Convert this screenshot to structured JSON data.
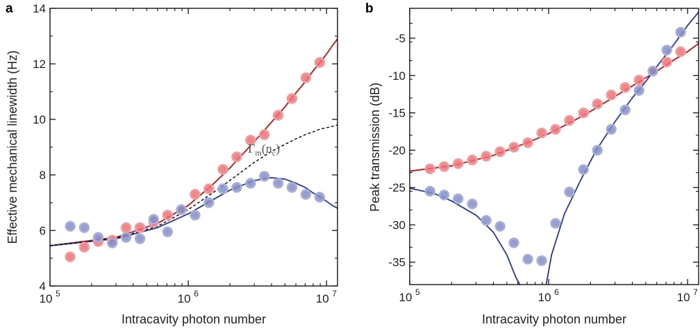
{
  "chart_data": [
    {
      "type": "scatter",
      "panel": "a",
      "xlabel": "Intracavity photon number",
      "ylabel": "Effective mechanical linewidth (Hz)",
      "xscale": "log",
      "xlim": [
        100000,
        12000000
      ],
      "ylim": [
        4,
        14
      ],
      "yticks": [
        4,
        6,
        8,
        10,
        12,
        14
      ],
      "xticks": [
        {
          "value": 100000,
          "base": "10",
          "exp": "5"
        },
        {
          "value": 1000000,
          "base": "10",
          "exp": "6"
        },
        {
          "value": 10000000,
          "base": "10",
          "exp": "7"
        }
      ],
      "annotation": {
        "main": "Γ",
        "sub1": "m",
        "mid": "(n",
        "sub2": "c",
        "end": ")",
        "x": 2700000,
        "y": 8.8
      },
      "series": [
        {
          "color": "#e0242a",
          "x": [
            140000,
            177000,
            223000,
            282000,
            355000,
            447000,
            562000,
            708000,
            891000,
            1120000,
            1410000,
            1780000,
            2240000,
            2820000,
            3550000,
            4470000,
            5620000,
            7080000,
            8910000
          ],
          "y": [
            5.05,
            5.4,
            5.6,
            5.65,
            6.1,
            6.1,
            6.3,
            6.55,
            6.75,
            7.3,
            7.5,
            8.2,
            8.65,
            9.25,
            9.45,
            10.15,
            10.75,
            11.5,
            12.05
          ]
        },
        {
          "color": "#3f4fa6",
          "x": [
            140000,
            177000,
            223000,
            282000,
            355000,
            447000,
            562000,
            708000,
            891000,
            1120000,
            1410000,
            1780000,
            2240000,
            2820000,
            3550000,
            4470000,
            5620000,
            7080000,
            8910000
          ],
          "y": [
            6.15,
            6.1,
            5.75,
            5.55,
            5.75,
            5.7,
            6.4,
            5.95,
            6.75,
            6.55,
            7.0,
            7.5,
            7.55,
            7.7,
            7.95,
            7.7,
            7.55,
            7.3,
            7.2
          ]
        }
      ],
      "fits": [
        {
          "color": "#c0181e",
          "style": "solid",
          "x": [
            100000,
            300000,
            600000,
            1000000,
            1500000,
            2000000,
            3000000,
            4000000,
            5000000,
            6000000,
            7000000,
            8000000,
            9000000,
            10000000,
            11000000,
            12000000
          ],
          "y": [
            5.45,
            5.75,
            6.25,
            6.9,
            7.65,
            8.25,
            9.2,
            9.9,
            10.45,
            10.95,
            11.35,
            11.75,
            12.05,
            12.35,
            12.65,
            12.9
          ]
        },
        {
          "color": "#2f3f9e",
          "style": "solid",
          "x": [
            100000,
            300000,
            600000,
            1000000,
            1500000,
            2000000,
            3000000,
            4000000,
            5000000,
            6000000,
            7000000,
            8000000,
            9000000,
            10000000,
            11000000,
            12000000
          ],
          "y": [
            5.45,
            5.7,
            6.1,
            6.6,
            7.1,
            7.45,
            7.8,
            7.9,
            7.85,
            7.7,
            7.55,
            7.35,
            7.2,
            7.05,
            6.9,
            6.8
          ]
        },
        {
          "color": "#000000",
          "style": "dashed",
          "x": [
            100000,
            300000,
            600000,
            1000000,
            1500000,
            2000000,
            3000000,
            4000000,
            5000000,
            6000000,
            7000000,
            8000000,
            9000000,
            10000000,
            11000000,
            12000000
          ],
          "y": [
            5.45,
            5.72,
            6.15,
            6.75,
            7.35,
            7.8,
            8.45,
            8.85,
            9.1,
            9.3,
            9.45,
            9.55,
            9.65,
            9.7,
            9.75,
            9.8
          ]
        }
      ]
    },
    {
      "type": "scatter",
      "panel": "b",
      "xlabel": "Intracavity photon number",
      "ylabel": "Peak transmission (dB)",
      "xscale": "log",
      "xlim": [
        100000,
        12000000
      ],
      "ylim": [
        -38,
        -1
      ],
      "yticks": [
        -35,
        -30,
        -25,
        -20,
        -15,
        -10,
        -5
      ],
      "xticks": [
        {
          "value": 100000,
          "base": "10",
          "exp": "5"
        },
        {
          "value": 1000000,
          "base": "10",
          "exp": "6"
        },
        {
          "value": 10000000,
          "base": "10",
          "exp": "7"
        }
      ],
      "series": [
        {
          "color": "#e0242a",
          "x": [
            140000,
            177000,
            223000,
            282000,
            355000,
            447000,
            562000,
            708000,
            891000,
            1120000,
            1410000,
            1780000,
            2240000,
            2820000,
            3550000,
            4470000,
            5620000,
            7080000,
            8910000
          ],
          "y": [
            -22.5,
            -22.2,
            -21.8,
            -21.3,
            -20.8,
            -20.2,
            -19.6,
            -19.0,
            -17.7,
            -17.2,
            -16.0,
            -15.0,
            -13.8,
            -12.6,
            -11.6,
            -10.6,
            -9.4,
            -8.2,
            -6.8
          ]
        },
        {
          "color": "#3f4fa6",
          "x": [
            140000,
            177000,
            223000,
            282000,
            355000,
            447000,
            562000,
            708000,
            891000,
            1120000,
            1410000,
            1780000,
            2240000,
            2820000,
            3550000,
            4470000,
            5620000,
            7080000,
            8910000
          ],
          "y": [
            -25.5,
            -26.0,
            -26.5,
            -27.2,
            -29.4,
            -30.2,
            -32.4,
            -34.6,
            -34.8,
            -29.8,
            -25.6,
            -22.6,
            -20.0,
            -17.2,
            -14.6,
            -12.0,
            -9.4,
            -6.6,
            -4.2
          ]
        }
      ],
      "fits": [
        {
          "color": "#c0181e",
          "style": "solid",
          "x": [
            100000,
            200000,
            400000,
            700000,
            1000000,
            1500000,
            2000000,
            3000000,
            4000000,
            5000000,
            6000000,
            8000000,
            10000000,
            12000000
          ],
          "y": [
            -22.8,
            -22.1,
            -20.7,
            -19.0,
            -17.8,
            -16.1,
            -14.8,
            -12.8,
            -11.4,
            -10.3,
            -9.4,
            -7.9,
            -6.8,
            -5.7
          ]
        },
        {
          "color": "#2f3f9e",
          "style": "solid",
          "x": [
            100000,
            150000,
            200000,
            300000,
            400000,
            500000,
            580000,
            620000
          ],
          "y": [
            -25.1,
            -25.8,
            -26.8,
            -28.7,
            -31.0,
            -34.0,
            -37.0,
            -38.0
          ]
        },
        {
          "color": "#2f3f9e",
          "style": "solid",
          "x": [
            960000,
            1050000,
            1300000,
            1700000,
            2200000,
            3000000,
            4000000,
            5000000,
            6000000,
            7000000,
            8000000,
            10000000,
            12000000
          ],
          "y": [
            -38.0,
            -34.0,
            -28.5,
            -24.0,
            -20.0,
            -16.2,
            -13.0,
            -10.8,
            -8.8,
            -7.2,
            -5.8,
            -3.3,
            -1.5
          ]
        }
      ]
    }
  ]
}
